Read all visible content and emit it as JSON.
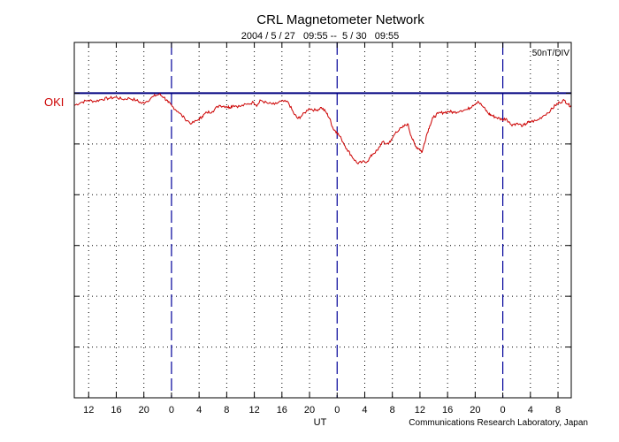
{
  "chart_data": {
    "type": "line",
    "title": "CRL Magnetometer Network",
    "subtitle": "2004 / 5 / 27   09:55 --  5 / 30   09:55",
    "scale_label": "50nT/DIV",
    "xlabel": "UT",
    "credit": "Communications Research Laboratory, Japan",
    "ylabel": "",
    "x_unit": "hours since 2004/5/27 09:55",
    "xlim": [
      0,
      72
    ],
    "ylim": [
      -300,
      50
    ],
    "y_divisions": [
      0,
      -50,
      -100,
      -150,
      -200,
      -250
    ],
    "x_tick_labels": [
      {
        "h": 2.083,
        "label": "12"
      },
      {
        "h": 6.083,
        "label": "16"
      },
      {
        "h": 10.083,
        "label": "20"
      },
      {
        "h": 14.083,
        "label": "0"
      },
      {
        "h": 18.083,
        "label": "4"
      },
      {
        "h": 22.083,
        "label": "8"
      },
      {
        "h": 26.083,
        "label": "12"
      },
      {
        "h": 30.083,
        "label": "16"
      },
      {
        "h": 34.083,
        "label": "20"
      },
      {
        "h": 38.083,
        "label": "0"
      },
      {
        "h": 42.083,
        "label": "4"
      },
      {
        "h": 46.083,
        "label": "8"
      },
      {
        "h": 50.083,
        "label": "12"
      },
      {
        "h": 54.083,
        "label": "16"
      },
      {
        "h": 58.083,
        "label": "20"
      },
      {
        "h": 62.083,
        "label": "0"
      },
      {
        "h": 66.083,
        "label": "4"
      },
      {
        "h": 70.083,
        "label": "8"
      }
    ],
    "day_boundaries": [
      14.083,
      38.083,
      62.083
    ],
    "colors": {
      "series": "#cc0000",
      "baseline": "#000080",
      "day_line": "#000099",
      "grid": "#000000"
    },
    "series": [
      {
        "name": "OKI",
        "baseline": 0,
        "x": [
          0,
          1,
          2,
          3,
          4,
          5,
          6,
          7,
          8,
          9,
          9.8,
          10.5,
          11.5,
          12.3,
          13,
          13.6,
          14.2,
          15,
          16,
          17,
          18,
          18.5,
          19.2,
          20,
          21,
          22,
          22.5,
          23,
          24,
          25,
          26,
          26.5,
          27,
          28,
          29,
          30,
          31,
          31.8,
          32.4,
          33,
          34,
          35,
          35.8,
          36.5,
          37,
          37.5,
          38,
          38.7,
          39.5,
          40.2,
          41,
          41.7,
          42.5,
          43.2,
          44,
          44.6,
          45.2,
          45.8,
          46.6,
          47.5,
          48.3,
          48.8,
          49.4,
          50,
          50.4,
          51,
          51.5,
          52,
          52.7,
          53.5,
          54.3,
          55,
          56,
          57,
          57.7,
          58.5,
          59.3,
          60,
          60.5,
          61.2,
          62,
          62.6,
          63.3,
          64,
          65,
          65.5,
          66,
          67,
          68,
          69,
          69.7,
          70.3,
          71,
          71.6,
          72
        ],
        "y": [
          -12,
          -9,
          -7,
          -8,
          -6,
          -5,
          -4,
          -6,
          -5,
          -7,
          -10,
          -8,
          -3,
          -1,
          -4,
          -9,
          -13,
          -18,
          -25,
          -30,
          -26,
          -23,
          -19,
          -18,
          -12,
          -13,
          -14,
          -12,
          -13,
          -11,
          -9,
          -12,
          -7,
          -10,
          -11,
          -8,
          -9,
          -20,
          -25,
          -22,
          -15,
          -17,
          -14,
          -19,
          -25,
          -35,
          -38,
          -45,
          -55,
          -62,
          -69,
          -68,
          -67,
          -60,
          -56,
          -48,
          -50,
          -48,
          -38,
          -34,
          -30,
          -42,
          -52,
          -55,
          -58,
          -42,
          -32,
          -24,
          -20,
          -19,
          -18,
          -19,
          -17,
          -16,
          -12,
          -8,
          -14,
          -20,
          -22,
          -24,
          -26,
          -25,
          -31,
          -30,
          -32,
          -30,
          -28,
          -27,
          -22,
          -17,
          -12,
          -9,
          -7,
          -11,
          -13
        ]
      }
    ]
  }
}
